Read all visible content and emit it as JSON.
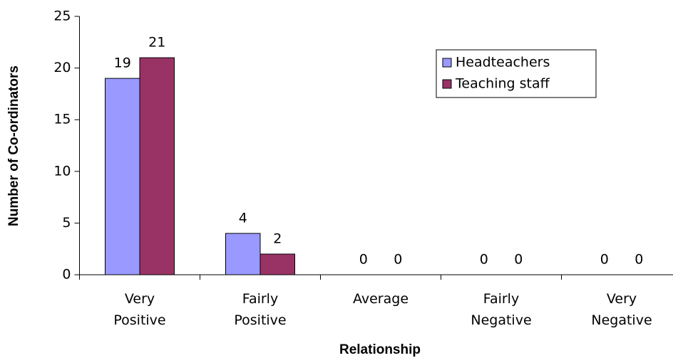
{
  "chart_data": {
    "type": "bar",
    "xlabel": "Relationship",
    "ylabel": "Number of Co-ordinators",
    "categories": [
      "Very Positive",
      "Fairly Positive",
      "Average",
      "Fairly Negative",
      "Very Negative"
    ],
    "series": [
      {
        "name": "Headteachers",
        "color": "#9999ff",
        "values": [
          19,
          4,
          0,
          0,
          0
        ]
      },
      {
        "name": "Teaching staff",
        "color": "#993366",
        "values": [
          21,
          2,
          0,
          0,
          0
        ]
      }
    ],
    "ylim": [
      0,
      25
    ],
    "yticks": [
      0,
      5,
      10,
      15,
      20,
      25
    ],
    "legend": "upper right"
  }
}
